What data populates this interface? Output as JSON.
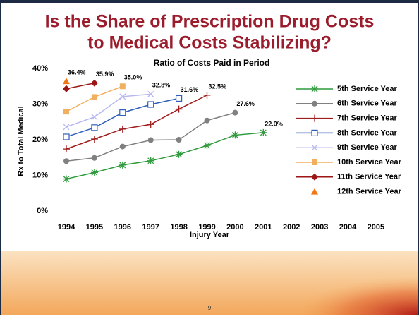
{
  "title_lines": [
    "Is the Share of Prescription Drug Costs",
    "to Medical Costs Stabilizing?"
  ],
  "page_number": "9",
  "chart_data": {
    "type": "line",
    "title": "Ratio of Costs Paid in Period",
    "x_label": "Injury Year",
    "y_label": "Rx to Total Medical",
    "categories": [
      "1994",
      "1995",
      "1996",
      "1997",
      "1998",
      "1999",
      "2000",
      "2001",
      "2002",
      "2003",
      "2004",
      "2005"
    ],
    "ylim": [
      0,
      40
    ],
    "yticks": [
      {
        "value": 0,
        "label": "0%"
      },
      {
        "value": 10,
        "label": "10%"
      },
      {
        "value": 20,
        "label": "20%"
      },
      {
        "value": 30,
        "label": "30%"
      },
      {
        "value": 40,
        "label": "40%"
      }
    ],
    "legend": "right",
    "series": [
      {
        "name": "5th Service Year",
        "color": "#2e9a3c",
        "marker": "asterisk",
        "values": [
          9.0,
          10.8,
          12.9,
          14.1,
          15.9,
          18.4,
          21.3,
          22.0,
          null,
          null,
          null,
          null
        ],
        "value_labels": [
          null,
          null,
          null,
          null,
          null,
          null,
          null,
          "22.0%",
          null,
          null,
          null,
          null
        ]
      },
      {
        "name": "6th Service Year",
        "color": "#808080",
        "marker": "circle",
        "values": [
          14.0,
          14.9,
          18.1,
          19.9,
          20.0,
          25.4,
          27.6,
          null,
          null,
          null,
          null,
          null
        ],
        "value_labels": [
          null,
          null,
          null,
          null,
          null,
          null,
          "27.6%",
          null,
          null,
          null,
          null,
          null
        ]
      },
      {
        "name": "7th Service Year",
        "color": "#a01c1c",
        "marker": "plus",
        "values": [
          17.4,
          20.2,
          23.0,
          24.3,
          28.6,
          32.5,
          null,
          null,
          null,
          null,
          null,
          null
        ],
        "value_labels": [
          null,
          null,
          null,
          null,
          null,
          "32.5%",
          null,
          null,
          null,
          null,
          null,
          null
        ]
      },
      {
        "name": "8th Service Year",
        "color": "#2f5fb8",
        "marker": "square-open",
        "values": [
          20.8,
          23.4,
          27.6,
          29.9,
          31.6,
          null,
          null,
          null,
          null,
          null,
          null,
          null
        ],
        "value_labels": [
          null,
          null,
          null,
          null,
          "31.6%",
          null,
          null,
          null,
          null,
          null,
          null,
          null
        ]
      },
      {
        "name": "9th Service Year",
        "color": "#b8b8f0",
        "marker": "x",
        "values": [
          23.6,
          26.4,
          32.1,
          32.8,
          null,
          null,
          null,
          null,
          null,
          null,
          null,
          null
        ],
        "value_labels": [
          null,
          null,
          null,
          "32.8%",
          null,
          null,
          null,
          null,
          null,
          null,
          null,
          null
        ]
      },
      {
        "name": "10th Service Year",
        "color": "#f0b060",
        "marker": "square",
        "values": [
          27.9,
          32.0,
          35.0,
          null,
          null,
          null,
          null,
          null,
          null,
          null,
          null,
          null
        ],
        "value_labels": [
          null,
          null,
          "35.0%",
          null,
          null,
          null,
          null,
          null,
          null,
          null,
          null,
          null
        ]
      },
      {
        "name": "11th Service Year",
        "color": "#9c1616",
        "marker": "diamond",
        "values": [
          34.3,
          35.9,
          null,
          null,
          null,
          null,
          null,
          null,
          null,
          null,
          null,
          null
        ],
        "value_labels": [
          null,
          "35.9%",
          null,
          null,
          null,
          null,
          null,
          null,
          null,
          null,
          null,
          null
        ]
      },
      {
        "name": "12th Service Year",
        "color": "#f07818",
        "marker": "triangle",
        "values": [
          36.4,
          null,
          null,
          null,
          null,
          null,
          null,
          null,
          null,
          null,
          null,
          null
        ],
        "value_labels": [
          "36.4%",
          null,
          null,
          null,
          null,
          null,
          null,
          null,
          null,
          null,
          null,
          null
        ]
      }
    ]
  }
}
